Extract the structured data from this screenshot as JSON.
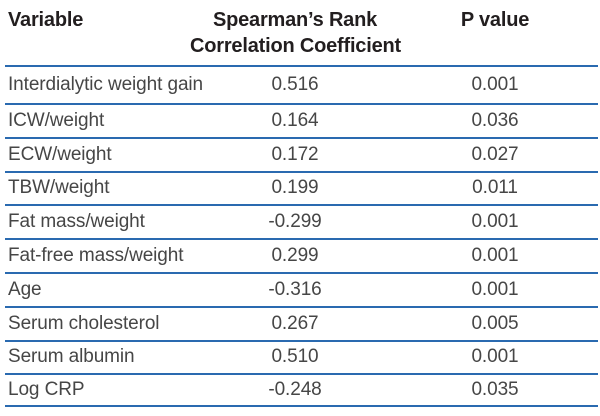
{
  "table": {
    "columns": {
      "variable": "Variable",
      "coefficient_line1": "Spearman’s Rank",
      "coefficient_line2": "Correlation Coefficient",
      "p_value": "P value"
    },
    "rows": [
      {
        "variable": "Interdialytic weight gain",
        "coefficient": "0.516",
        "p_value": "0.001"
      },
      {
        "variable": "ICW/weight",
        "coefficient": "0.164",
        "p_value": "0.036"
      },
      {
        "variable": "ECW/weight",
        "coefficient": "0.172",
        "p_value": "0.027"
      },
      {
        "variable": "TBW/weight",
        "coefficient": "0.199",
        "p_value": "0.011"
      },
      {
        "variable": "Fat mass/weight",
        "coefficient": "-0.299",
        "p_value": "0.001"
      },
      {
        "variable": "Fat-free mass/weight",
        "coefficient": "0.299",
        "p_value": "0.001"
      },
      {
        "variable": "Age",
        "coefficient": "-0.316",
        "p_value": "0.001"
      },
      {
        "variable": "Serum cholesterol",
        "coefficient": "0.267",
        "p_value": "0.005"
      },
      {
        "variable": "Serum albumin",
        "coefficient": "0.510",
        "p_value": "0.001"
      },
      {
        "variable": "Log CRP",
        "coefficient": "-0.248",
        "p_value": "0.035"
      }
    ]
  },
  "colors": {
    "rule_blue": "#2a6ab0",
    "header_text": "#221e1f",
    "body_text": "#464646"
  }
}
